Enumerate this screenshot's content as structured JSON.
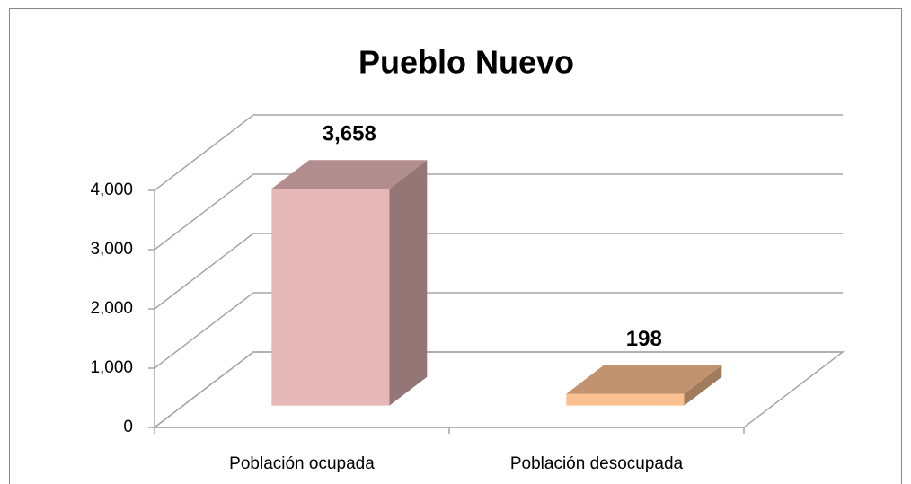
{
  "chart_data": {
    "type": "bar3d",
    "title": "Pueblo Nuevo",
    "categories": [
      "Población ocupada",
      "Población desocupada"
    ],
    "values": [
      3658,
      198
    ],
    "value_labels": [
      "3,658",
      "198"
    ],
    "colors": [
      "#e6b8b7",
      "#fac090"
    ],
    "ylim": [
      0,
      4000
    ],
    "yticks": [
      0,
      {
        "value": 1000,
        "label": "1,000"
      },
      {
        "value": 2000,
        "label": "2,000"
      },
      {
        "value": 3000,
        "label": "3,000"
      },
      {
        "value": 4000,
        "label": "4,000"
      }
    ],
    "grid": true
  }
}
